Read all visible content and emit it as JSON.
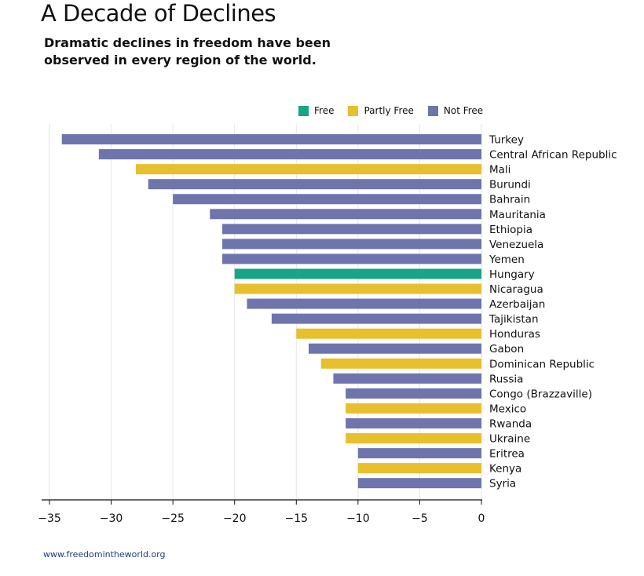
{
  "title": "A Decade of Declines",
  "subtitle": "Dramatic declines in freedom have been observed in every region of the world.",
  "footer": "www.freedomintheworld.org",
  "colors": {
    "Free": "#1aa386",
    "Partly Free": "#e8bf2c",
    "Not Free": "#6e75ad"
  },
  "chart_data": {
    "type": "bar",
    "orientation": "horizontal",
    "xlim": [
      -35,
      0
    ],
    "xticks": [
      -35,
      -30,
      -25,
      -20,
      -15,
      -10,
      -5,
      0
    ],
    "xtick_labels": [
      "−35",
      "−30",
      "−25",
      "−20",
      "−15",
      "−10",
      "−5",
      "0"
    ],
    "grid": true,
    "legend_position": "top-right",
    "legend": [
      "Free",
      "Partly Free",
      "Not Free"
    ],
    "categories": [
      "Turkey",
      "Central African Republic",
      "Mali",
      "Burundi",
      "Bahrain",
      "Mauritania",
      "Ethiopia",
      "Venezuela",
      "Yemen",
      "Hungary",
      "Nicaragua",
      "Azerbaijan",
      "Tajikistan",
      "Honduras",
      "Gabon",
      "Dominican Republic",
      "Russia",
      "Congo (Brazzaville)",
      "Mexico",
      "Rwanda",
      "Ukraine",
      "Eritrea",
      "Kenya",
      "Syria"
    ],
    "values": [
      -34,
      -31,
      -28,
      -27,
      -25,
      -22,
      -21,
      -21,
      -21,
      -20,
      -20,
      -19,
      -17,
      -15,
      -14,
      -13,
      -12,
      -11,
      -11,
      -11,
      -11,
      -10,
      -10,
      -10
    ],
    "status": [
      "Not Free",
      "Not Free",
      "Partly Free",
      "Not Free",
      "Not Free",
      "Not Free",
      "Not Free",
      "Not Free",
      "Not Free",
      "Free",
      "Partly Free",
      "Not Free",
      "Not Free",
      "Partly Free",
      "Not Free",
      "Partly Free",
      "Not Free",
      "Not Free",
      "Partly Free",
      "Not Free",
      "Partly Free",
      "Not Free",
      "Partly Free",
      "Not Free"
    ]
  }
}
